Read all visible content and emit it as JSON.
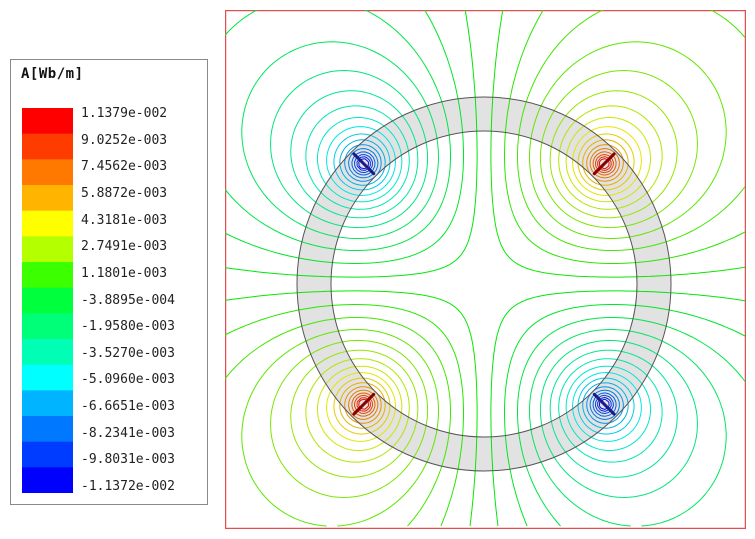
{
  "chart_data": {
    "type": "heatmap",
    "title": "A[Wb/m]",
    "legend": {
      "placement": "left",
      "labels": [
        "1.1379e-002",
        "9.0252e-003",
        "7.4562e-003",
        "5.8872e-003",
        "4.3181e-003",
        "2.7491e-003",
        "1.1801e-003",
        "-3.8895e-004",
        "-1.9580e-003",
        "-3.5270e-003",
        "-5.0960e-003",
        "-6.6651e-003",
        "-8.2341e-003",
        "-9.8031e-003",
        "-1.1372e-002"
      ],
      "values": [
        0.011379,
        0.0090252,
        0.0074562,
        0.0058872,
        0.0043181,
        0.0027491,
        0.0011801,
        -0.00038895,
        -0.001958,
        -0.003527,
        -0.005096,
        -0.0066651,
        -0.0082341,
        -0.0098031,
        -0.011372
      ],
      "colors": [
        "#ff0000",
        "#ff3c00",
        "#ff7800",
        "#ffb400",
        "#ffff00",
        "#b4ff00",
        "#3cff00",
        "#00ff3c",
        "#00ff78",
        "#00ffb4",
        "#00ffff",
        "#00b4ff",
        "#0078ff",
        "#003cff",
        "#0000ff"
      ]
    },
    "range": [
      -0.011372,
      0.011379
    ],
    "sources": [
      {
        "angle_deg": 45,
        "sign": 1
      },
      {
        "angle_deg": 135,
        "sign": -1
      },
      {
        "angle_deg": 225,
        "sign": 1
      },
      {
        "angle_deg": 315,
        "sign": -1
      }
    ],
    "ring": {
      "fill": "#e2e2e2",
      "stroke": "#555555"
    },
    "border_color": "#e05050"
  }
}
